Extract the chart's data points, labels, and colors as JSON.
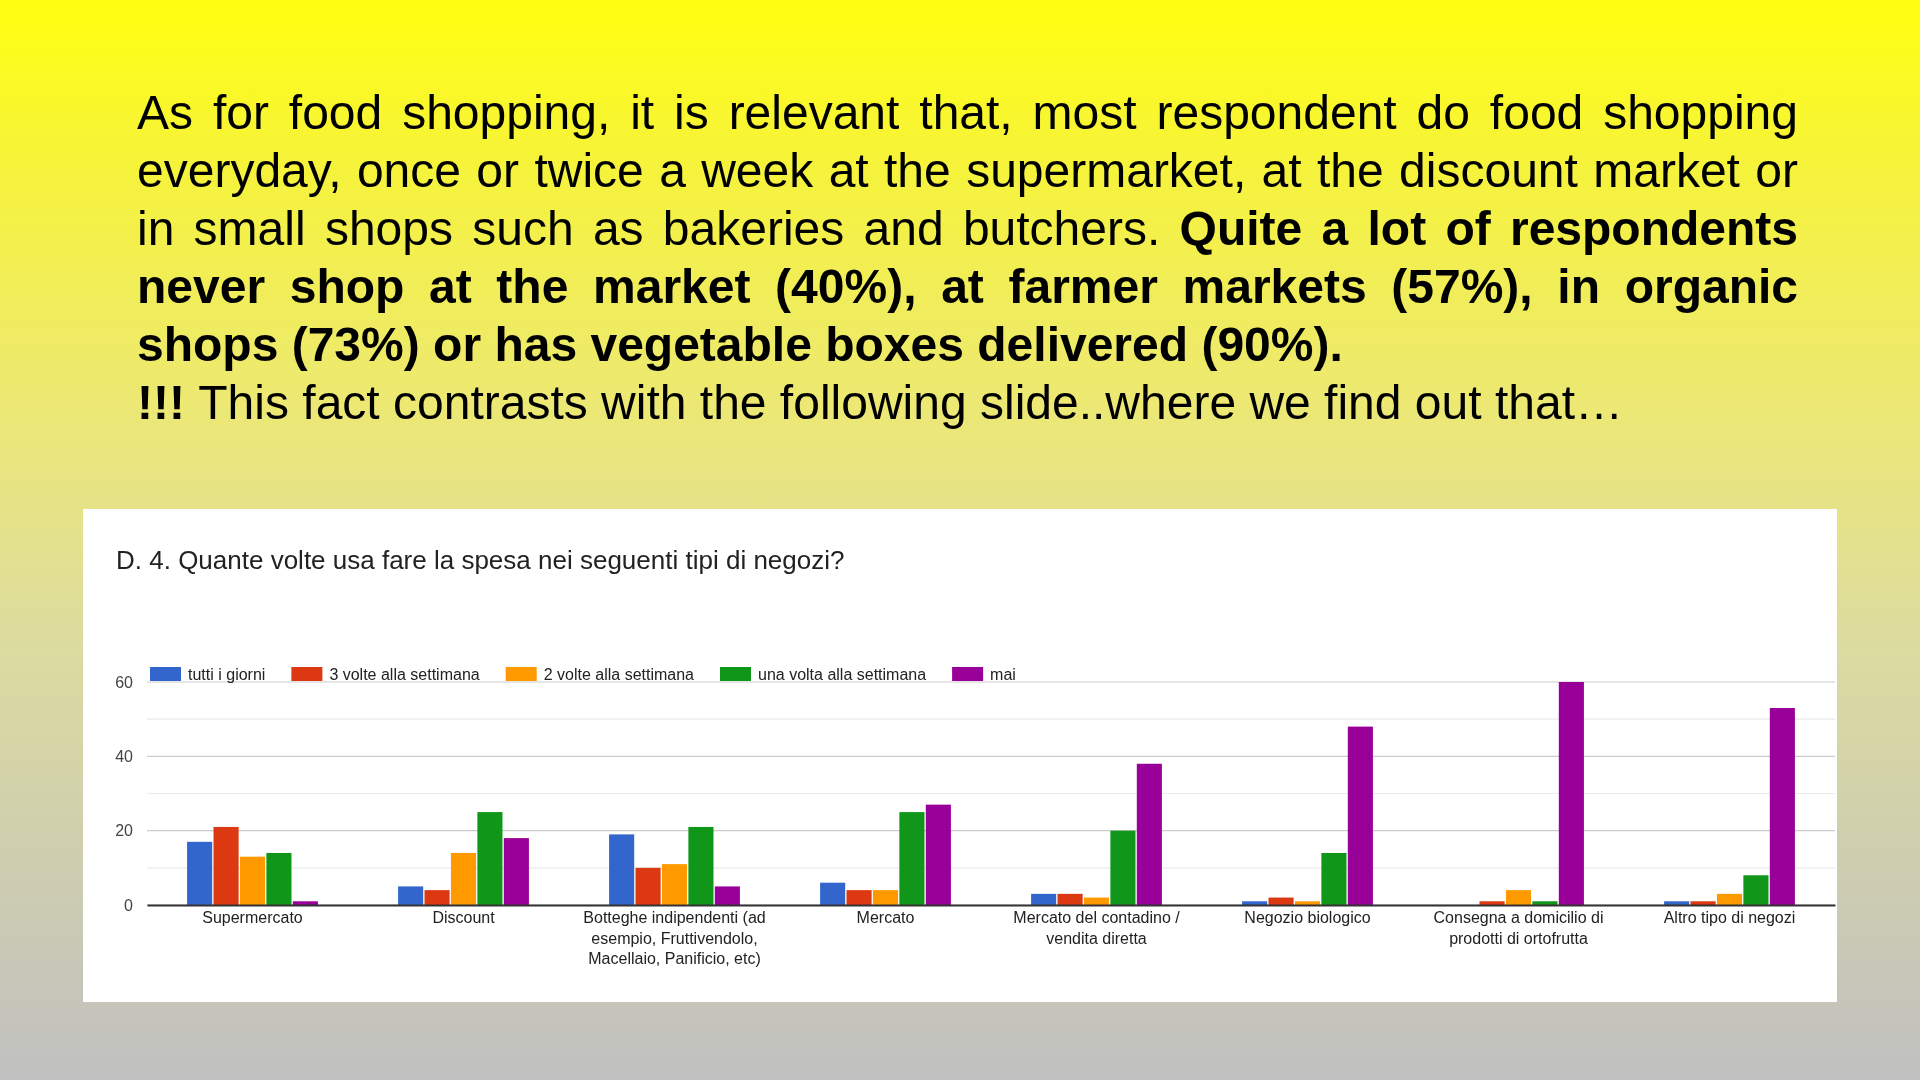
{
  "chart_data": {
    "type": "bar",
    "title": "D. 4. Quante volte usa fare la spesa nei seguenti tipi di negozi?",
    "annotations": [
      "As for food shopping, it is relevant that, most respondent do food shopping everyday, once or twice a week at the supermarket, at the discount market or",
      "in small shops such as bakeries and butchers.",
      "Quite a lot of respondents",
      "never shop at the market (40%), at farmer markets (57%), in organic shops (73%) or has vegetable boxes delivered (90%).",
      "!!!",
      "This fact contrasts with the following slide..where we find out that…"
    ],
    "categories": [
      "Supermercato",
      "Discount",
      "Botteghe indipendenti (ad esempio, Fruttivendolo, Macellaio, Panificio, etc)",
      "Mercato",
      "Mercato del contadino / vendita diretta",
      "Negozio biologico",
      "Consegna a domicilio di prodotti di ortofrutta",
      "Altro tipo di negozi"
    ],
    "series": [
      {
        "name": "tutti i giorni",
        "color": "#3366cc",
        "values": [
          17,
          5,
          19,
          6,
          3,
          1,
          0,
          1
        ]
      },
      {
        "name": "3 volte alla settimana",
        "color": "#dc3912",
        "values": [
          21,
          4,
          10,
          4,
          3,
          2,
          1,
          1
        ]
      },
      {
        "name": "2 volte alla settimana",
        "color": "#ff9900",
        "values": [
          13,
          14,
          11,
          4,
          2,
          1,
          4,
          3
        ]
      },
      {
        "name": "una volta alla settimana",
        "color": "#109618",
        "values": [
          14,
          25,
          21,
          25,
          20,
          14,
          1,
          8
        ]
      },
      {
        "name": "mai",
        "color": "#990099",
        "values": [
          1,
          18,
          5,
          27,
          38,
          48,
          60,
          53
        ]
      }
    ],
    "ylim": [
      0,
      60
    ],
    "yticks": [
      0,
      {
        "value": 10,
        "label": null
      },
      20,
      {
        "value": 30,
        "label": null
      },
      40,
      {
        "value": 50,
        "label": null
      },
      60
    ],
    "grid": "y",
    "legend": "top"
  }
}
